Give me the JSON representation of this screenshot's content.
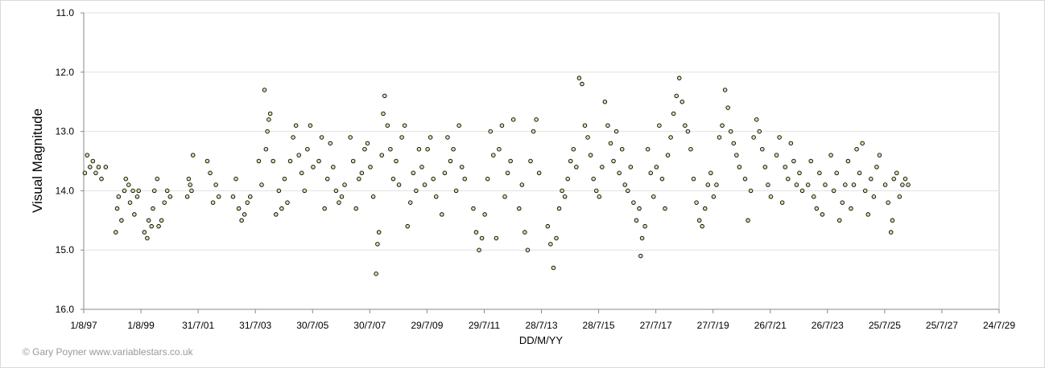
{
  "chart_data": {
    "type": "scatter",
    "y_label": "Visual Magnitude",
    "x_label": "DD/M/YY",
    "credit": "© Gary Poyner www.variablestars.co.uk",
    "color": "#dcdca8",
    "grid": true,
    "y_reversed": true,
    "xlim": [
      1997.58,
      2029.58
    ],
    "ylim": [
      11,
      16
    ],
    "xticks": [
      {
        "value": 1997.58,
        "label": "1/8/97"
      },
      {
        "value": 1999.58,
        "label": "1/8/99"
      },
      {
        "value": 2001.58,
        "label": "31/7/01"
      },
      {
        "value": 2003.58,
        "label": "31/7/03"
      },
      {
        "value": 2005.58,
        "label": "30/7/05"
      },
      {
        "value": 2007.58,
        "label": "30/7/07"
      },
      {
        "value": 2009.58,
        "label": "29/7/09"
      },
      {
        "value": 2011.58,
        "label": "29/7/11"
      },
      {
        "value": 2013.58,
        "label": "28/7/13"
      },
      {
        "value": 2015.58,
        "label": "28/7/15"
      },
      {
        "value": 2017.58,
        "label": "27/7/17"
      },
      {
        "value": 2019.58,
        "label": "27/7/19"
      },
      {
        "value": 2021.58,
        "label": "26/7/21"
      },
      {
        "value": 2023.58,
        "label": "26/7/23"
      },
      {
        "value": 2025.58,
        "label": "25/7/25"
      },
      {
        "value": 2027.58,
        "label": "25/7/27"
      },
      {
        "value": 2029.58,
        "label": "24/7/29"
      }
    ],
    "yticks": [
      {
        "value": 11,
        "label": "11.0"
      },
      {
        "value": 12,
        "label": "12.0"
      },
      {
        "value": 13,
        "label": "13.0"
      },
      {
        "value": 14,
        "label": "14.0"
      },
      {
        "value": 15,
        "label": "15.0"
      },
      {
        "value": 16,
        "label": "16.0"
      }
    ],
    "x": [
      1997.62,
      1997.7,
      1997.8,
      1997.9,
      1998.0,
      1998.1,
      1998.2,
      1998.35,
      1998.7,
      1998.75,
      1998.8,
      1998.9,
      1999.0,
      1999.05,
      1999.15,
      1999.2,
      1999.3,
      1999.35,
      1999.45,
      1999.5,
      1999.7,
      1999.8,
      1999.85,
      1999.95,
      2000.0,
      2000.05,
      2000.15,
      2000.2,
      2000.3,
      2000.4,
      2000.5,
      2000.6,
      2001.2,
      2001.25,
      2001.3,
      2001.35,
      2001.4,
      2001.9,
      2002.0,
      2002.1,
      2002.2,
      2002.3,
      2002.8,
      2002.9,
      2003.0,
      2003.1,
      2003.2,
      2003.3,
      2003.4,
      2003.7,
      2003.8,
      2003.9,
      2003.95,
      2004.0,
      2004.05,
      2004.1,
      2004.2,
      2004.3,
      2004.4,
      2004.5,
      2004.6,
      2004.7,
      2004.8,
      2004.9,
      2005.0,
      2005.1,
      2005.2,
      2005.3,
      2005.4,
      2005.5,
      2005.6,
      2005.8,
      2005.9,
      2006.0,
      2006.1,
      2006.2,
      2006.3,
      2006.4,
      2006.5,
      2006.6,
      2006.7,
      2006.9,
      2007.0,
      2007.1,
      2007.2,
      2007.3,
      2007.4,
      2007.5,
      2007.6,
      2007.7,
      2007.8,
      2007.85,
      2007.9,
      2008.0,
      2008.05,
      2008.1,
      2008.2,
      2008.3,
      2008.4,
      2008.5,
      2008.6,
      2008.7,
      2008.8,
      2008.9,
      2009.0,
      2009.1,
      2009.2,
      2009.3,
      2009.4,
      2009.5,
      2009.6,
      2009.7,
      2009.8,
      2009.9,
      2010.1,
      2010.2,
      2010.3,
      2010.4,
      2010.5,
      2010.6,
      2010.7,
      2010.8,
      2010.9,
      2011.2,
      2011.3,
      2011.4,
      2011.5,
      2011.6,
      2011.7,
      2011.8,
      2011.9,
      2012.0,
      2012.1,
      2012.2,
      2012.3,
      2012.4,
      2012.5,
      2012.6,
      2012.8,
      2012.9,
      2013.0,
      2013.1,
      2013.2,
      2013.3,
      2013.4,
      2013.5,
      2013.8,
      2013.9,
      2014.0,
      2014.1,
      2014.2,
      2014.3,
      2014.4,
      2014.5,
      2014.6,
      2014.7,
      2014.8,
      2014.9,
      2015.0,
      2015.1,
      2015.2,
      2015.3,
      2015.4,
      2015.5,
      2015.6,
      2015.7,
      2015.8,
      2015.9,
      2016.0,
      2016.1,
      2016.2,
      2016.3,
      2016.4,
      2016.5,
      2016.6,
      2016.7,
      2016.8,
      2016.9,
      2017.0,
      2017.05,
      2017.1,
      2017.2,
      2017.3,
      2017.4,
      2017.5,
      2017.6,
      2017.7,
      2017.8,
      2017.9,
      2018.0,
      2018.1,
      2018.2,
      2018.3,
      2018.4,
      2018.5,
      2018.6,
      2018.7,
      2018.8,
      2018.9,
      2019.0,
      2019.1,
      2019.2,
      2019.3,
      2019.4,
      2019.5,
      2019.6,
      2019.7,
      2019.8,
      2019.9,
      2020.0,
      2020.1,
      2020.2,
      2020.3,
      2020.4,
      2020.5,
      2020.7,
      2020.8,
      2020.9,
      2021.0,
      2021.1,
      2021.2,
      2021.3,
      2021.4,
      2021.5,
      2021.6,
      2021.8,
      2021.9,
      2022.0,
      2022.1,
      2022.2,
      2022.3,
      2022.4,
      2022.5,
      2022.6,
      2022.7,
      2022.9,
      2023.0,
      2023.1,
      2023.2,
      2023.3,
      2023.4,
      2023.5,
      2023.7,
      2023.8,
      2023.9,
      2024.0,
      2024.1,
      2024.2,
      2024.3,
      2024.4,
      2024.5,
      2024.6,
      2024.7,
      2024.8,
      2024.9,
      2025.0,
      2025.1,
      2025.2,
      2025.3,
      2025.4,
      2025.6,
      2025.7,
      2025.8,
      2025.85,
      2025.9,
      2026.0,
      2026.1,
      2026.2,
      2026.3,
      2026.4
    ],
    "values": [
      13.7,
      13.4,
      13.6,
      13.5,
      13.7,
      13.6,
      13.8,
      13.6,
      14.7,
      14.3,
      14.1,
      14.5,
      14.0,
      13.8,
      13.9,
      14.2,
      14.0,
      14.4,
      14.1,
      14.0,
      14.7,
      14.8,
      14.5,
      14.6,
      14.3,
      14.0,
      13.8,
      14.6,
      14.5,
      14.2,
      14.0,
      14.1,
      14.1,
      13.8,
      13.9,
      14.0,
      13.4,
      13.5,
      13.7,
      14.2,
      13.9,
      14.1,
      14.1,
      13.8,
      14.3,
      14.5,
      14.4,
      14.2,
      14.1,
      13.5,
      13.9,
      12.3,
      13.3,
      13.0,
      12.8,
      12.7,
      13.5,
      14.4,
      14.0,
      14.3,
      13.8,
      14.2,
      13.5,
      13.1,
      12.9,
      13.4,
      13.7,
      14.0,
      13.3,
      12.9,
      13.6,
      13.5,
      13.1,
      14.3,
      13.8,
      13.2,
      13.6,
      14.0,
      14.2,
      14.1,
      13.9,
      13.1,
      13.5,
      14.3,
      13.8,
      13.7,
      13.3,
      13.2,
      13.6,
      14.1,
      15.4,
      14.9,
      14.7,
      13.4,
      12.7,
      12.4,
      12.9,
      13.3,
      13.8,
      13.5,
      13.9,
      13.1,
      12.9,
      14.6,
      14.2,
      13.7,
      14.0,
      13.3,
      13.6,
      13.9,
      13.3,
      13.1,
      13.8,
      14.1,
      14.4,
      13.7,
      13.1,
      13.5,
      13.3,
      14.0,
      12.9,
      13.6,
      13.8,
      14.3,
      14.7,
      15.0,
      14.8,
      14.4,
      13.8,
      13.0,
      13.4,
      14.8,
      13.3,
      12.9,
      14.1,
      13.7,
      13.5,
      12.8,
      14.3,
      13.9,
      14.7,
      15.0,
      13.5,
      13.0,
      12.8,
      13.7,
      14.6,
      14.9,
      15.3,
      14.8,
      14.3,
      14.0,
      14.1,
      13.8,
      13.5,
      13.3,
      13.6,
      12.1,
      12.2,
      12.9,
      13.1,
      13.4,
      13.8,
      14.0,
      14.1,
      13.6,
      12.5,
      12.9,
      13.2,
      13.5,
      13.0,
      13.7,
      13.3,
      13.9,
      14.0,
      13.6,
      14.2,
      14.5,
      14.3,
      15.1,
      14.8,
      14.6,
      13.3,
      13.7,
      14.1,
      13.6,
      12.9,
      13.8,
      14.3,
      13.4,
      13.1,
      12.7,
      12.4,
      12.1,
      12.5,
      12.9,
      13.0,
      13.3,
      13.8,
      14.2,
      14.5,
      14.6,
      14.3,
      13.9,
      13.7,
      14.1,
      13.9,
      13.1,
      12.9,
      12.3,
      12.6,
      13.0,
      13.2,
      13.4,
      13.6,
      13.8,
      14.5,
      14.0,
      13.1,
      12.8,
      13.0,
      13.3,
      13.6,
      13.9,
      14.1,
      13.4,
      13.1,
      14.2,
      13.6,
      13.8,
      13.2,
      13.5,
      13.9,
      13.7,
      14.0,
      13.9,
      13.5,
      14.1,
      14.3,
      13.7,
      14.4,
      13.9,
      13.4,
      14.0,
      13.7,
      14.5,
      14.2,
      13.9,
      13.5,
      14.3,
      13.9,
      13.3,
      13.7,
      13.2,
      14.0,
      14.4,
      13.8,
      14.1,
      13.6,
      13.4,
      13.9,
      14.2,
      14.7,
      14.5,
      13.8,
      13.7,
      14.1,
      13.9,
      13.8,
      13.9
    ]
  }
}
